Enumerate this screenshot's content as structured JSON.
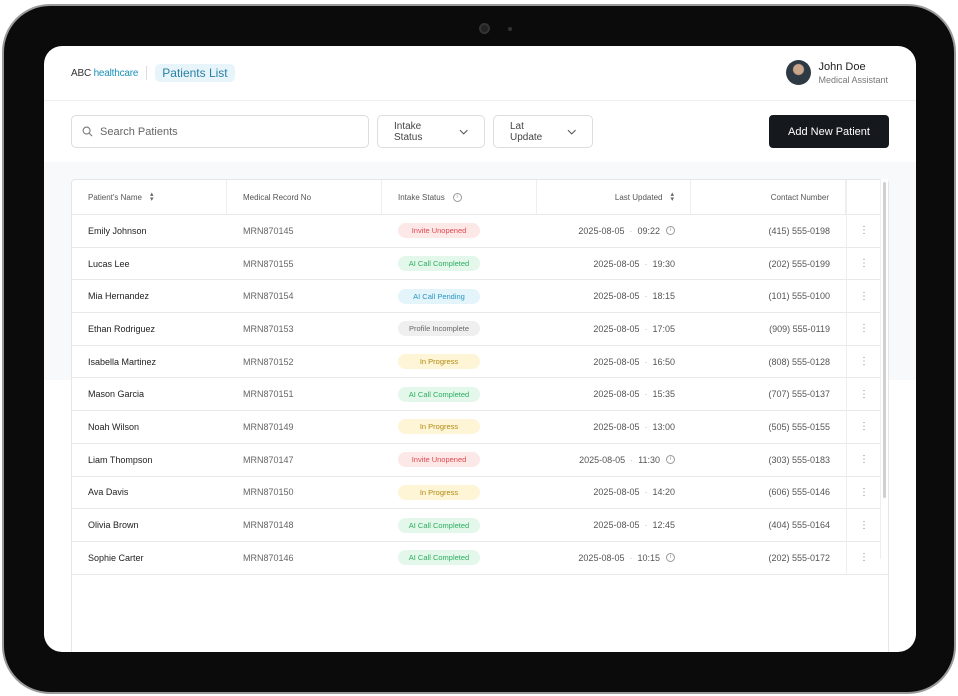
{
  "header": {
    "brand_a": "ABC",
    "brand_b": "healthcare",
    "breadcrumb": "Patients List",
    "user_name": "John Doe",
    "user_role": "Medical Assistant"
  },
  "filters": {
    "search_placeholder": "Search Patients",
    "intake_status": "Intake Status",
    "last_update": "Lat Update",
    "add_button": "Add New Patient"
  },
  "columns": [
    "Patient's Name",
    "Medical Record No",
    "Intake Status",
    "Last Updated",
    "Contact Number"
  ],
  "status_colors": {
    "Invite Unopened": [
      "#fde8e8",
      "#e0484e"
    ],
    "AI Call Completed": [
      "#e3f7ea",
      "#2bae5e"
    ],
    "AI Call Pending": [
      "#e3f4fa",
      "#2896c4"
    ],
    "Profile Incomplete": [
      "#efefef",
      "#666666"
    ],
    "In Progress": [
      "#fdf5d6",
      "#b08a10"
    ]
  },
  "rows": [
    {
      "name": "Emily Johnson",
      "mrn": "MRN870145",
      "status": "Invite Unopened",
      "date": "2025-08-05",
      "time": "09:22",
      "info": true,
      "phone": "(415) 555-0198"
    },
    {
      "name": "Lucas Lee",
      "mrn": "MRN870155",
      "status": "AI Call Completed",
      "date": "2025-08-05",
      "time": "19:30",
      "info": false,
      "phone": "(202) 555-0199"
    },
    {
      "name": "Mia Hernandez",
      "mrn": "MRN870154",
      "status": "AI Call Pending",
      "date": "2025-08-05",
      "time": "18:15",
      "info": false,
      "phone": "(101) 555-0100"
    },
    {
      "name": "Ethan Rodriguez",
      "mrn": "MRN870153",
      "status": "Profile Incomplete",
      "date": "2025-08-05",
      "time": "17:05",
      "info": false,
      "phone": "(909) 555-0119"
    },
    {
      "name": "Isabella Martinez",
      "mrn": "MRN870152",
      "status": "In Progress",
      "date": "2025-08-05",
      "time": "16:50",
      "info": false,
      "phone": "(808) 555-0128"
    },
    {
      "name": "Mason Garcia",
      "mrn": "MRN870151",
      "status": "AI Call Completed",
      "date": "2025-08-05",
      "time": "15:35",
      "info": false,
      "phone": "(707) 555-0137"
    },
    {
      "name": "Noah Wilson",
      "mrn": "MRN870149",
      "status": "In Progress",
      "date": "2025-08-05",
      "time": "13:00",
      "info": false,
      "phone": "(505) 555-0155"
    },
    {
      "name": "Liam Thompson",
      "mrn": "MRN870147",
      "status": "Invite Unopened",
      "date": "2025-08-05",
      "time": "11:30",
      "info": true,
      "phone": "(303) 555-0183"
    },
    {
      "name": "Ava Davis",
      "mrn": "MRN870150",
      "status": "In Progress",
      "date": "2025-08-05",
      "time": "14:20",
      "info": false,
      "phone": "(606) 555-0146"
    },
    {
      "name": "Olivia Brown",
      "mrn": "MRN870148",
      "status": "AI Call Completed",
      "date": "2025-08-05",
      "time": "12:45",
      "info": false,
      "phone": "(404) 555-0164"
    },
    {
      "name": "Sophie Carter",
      "mrn": "MRN870146",
      "status": "AI Call Completed",
      "date": "2025-08-05",
      "time": "10:15",
      "info": true,
      "phone": "(202) 555-0172"
    }
  ]
}
